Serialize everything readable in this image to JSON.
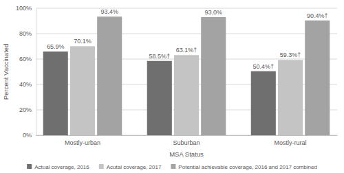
{
  "chart_data": {
    "type": "bar",
    "x_label": "MSA Status",
    "y_label": "Percent Vaccinated",
    "categories": [
      "Mostly-urban",
      "Suburban",
      "Mostly-rural"
    ],
    "series": [
      {
        "name": "Actual coverage, 2016",
        "color": "#6f6f6f",
        "values": [
          65.9,
          58.5,
          50.4
        ],
        "value_labels": [
          "65.9%",
          "58.5%†",
          "50.4%†"
        ]
      },
      {
        "name": "Acutal coverage, 2017",
        "color": "#c4c4c4",
        "values": [
          70.1,
          63.1,
          59.3
        ],
        "value_labels": [
          "70.1%",
          "63.1%†",
          "59.3%†"
        ]
      },
      {
        "name": "Potential achievable coverage, 2016 and 2017 combined",
        "color": "#a3a3a3",
        "values": [
          93.4,
          93.0,
          90.4
        ],
        "value_labels": [
          "93.4%",
          "93.0%",
          "90.4%†"
        ]
      }
    ],
    "ylim": [
      0,
      100
    ],
    "yticks": [
      {
        "value": 0,
        "label": "0%"
      },
      {
        "value": 20,
        "label": "20%"
      },
      {
        "value": 40,
        "label": "40%"
      },
      {
        "value": 60,
        "label": "60%"
      },
      {
        "value": 80,
        "label": "80%"
      },
      {
        "value": 100,
        "label": "100%"
      }
    ],
    "grid": true,
    "data_labels": true,
    "legend": "bottom"
  }
}
